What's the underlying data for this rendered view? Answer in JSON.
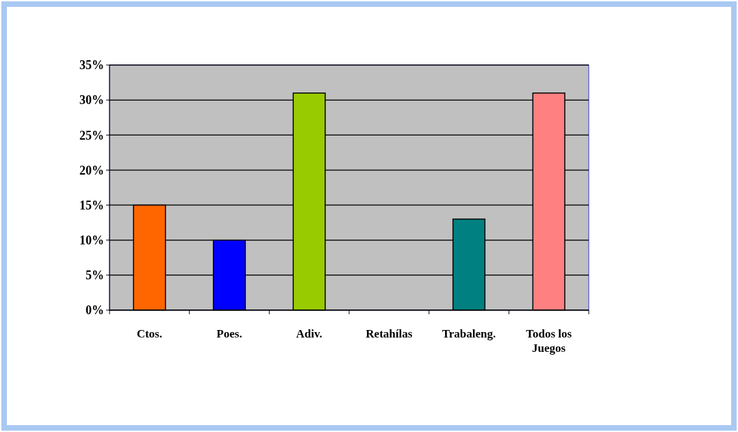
{
  "chart_data": {
    "type": "bar",
    "categories": [
      "Ctos.",
      "Poes.",
      "Adiv.",
      "Retahílas",
      "Trabaleng.",
      "Todos los Juegos"
    ],
    "values": [
      15,
      10,
      31,
      0,
      13,
      31
    ],
    "colors": [
      "#ff6600",
      "#0000ff",
      "#99cc00",
      "#ccaa00",
      "#008080",
      "#ff8080"
    ],
    "ylim": [
      0,
      35
    ],
    "yticks": [
      {
        "value": 0,
        "label": "0%"
      },
      {
        "value": 5,
        "label": "5%"
      },
      {
        "value": 10,
        "label": "10%"
      },
      {
        "value": 15,
        "label": "15%"
      },
      {
        "value": 20,
        "label": "20%"
      },
      {
        "value": 25,
        "label": "25%"
      },
      {
        "value": 30,
        "label": "30%"
      },
      {
        "value": 35,
        "label": "35%"
      }
    ],
    "grid": "y"
  }
}
